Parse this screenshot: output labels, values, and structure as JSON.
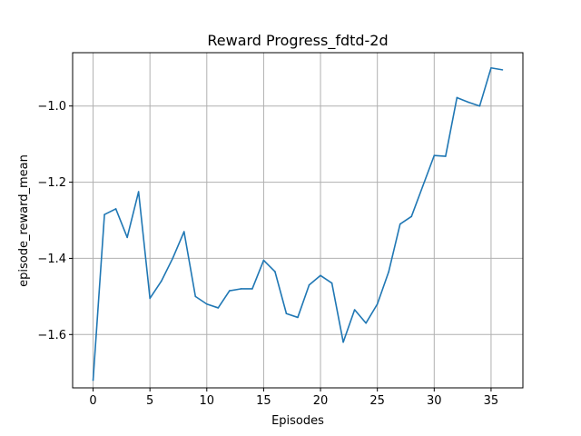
{
  "chart_data": {
    "type": "line",
    "title": "Reward Progress_fdtd-2d",
    "xlabel": "Episodes",
    "ylabel": "episode_reward_mean",
    "xlim": [
      -1.8,
      37.8
    ],
    "ylim": [
      -1.74,
      -0.86
    ],
    "xticks": [
      0,
      5,
      10,
      15,
      20,
      25,
      30,
      35
    ],
    "yticks": [
      -1.6,
      -1.4,
      -1.2,
      -1.0
    ],
    "grid": true,
    "series": [
      {
        "color": "#1f77b4",
        "x": [
          0,
          1,
          2,
          3,
          4,
          5,
          6,
          7,
          8,
          9,
          10,
          11,
          12,
          13,
          14,
          15,
          16,
          17,
          18,
          19,
          20,
          21,
          22,
          23,
          24,
          25,
          26,
          27,
          28,
          29,
          30,
          31,
          32,
          33,
          34,
          35,
          36
        ],
        "y": [
          -1.72,
          -1.285,
          -1.27,
          -1.345,
          -1.225,
          -1.505,
          -1.46,
          -1.4,
          -1.33,
          -1.5,
          -1.52,
          -1.53,
          -1.485,
          -1.48,
          -1.48,
          -1.405,
          -1.435,
          -1.545,
          -1.555,
          -1.47,
          -1.445,
          -1.465,
          -1.62,
          -1.535,
          -1.57,
          -1.52,
          -1.435,
          -1.31,
          -1.29,
          -1.21,
          -1.13,
          -1.132,
          -0.978,
          -0.99,
          -1.0,
          -0.9,
          -0.905
        ]
      }
    ]
  }
}
